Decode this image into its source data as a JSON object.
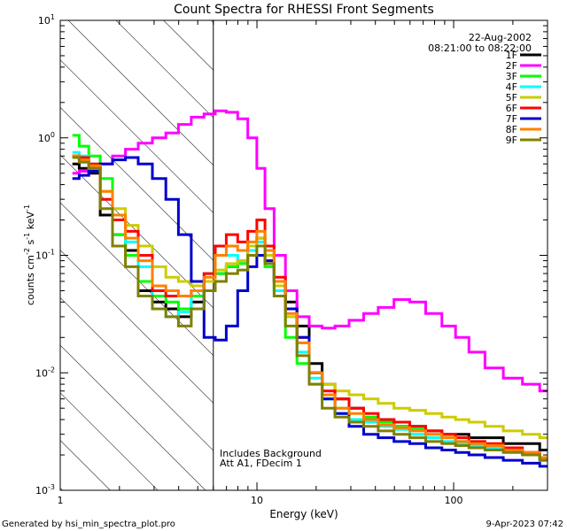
{
  "chart_data": {
    "type": "line",
    "title": "Count Spectra for RHESSI Front Segments",
    "xlabel": "Energy (keV)",
    "ylabel_parts": {
      "pre": "counts cm",
      "exp1": "-2",
      "mid": " s",
      "exp2": "-1",
      "unit": " keV",
      "exp3": "-1"
    },
    "x_scale": "log",
    "y_scale": "log",
    "xlim": [
      1,
      300
    ],
    "ylim": [
      0.001,
      10
    ],
    "x_ticks": [
      {
        "value": 1,
        "label": "1"
      },
      {
        "value": 10,
        "label": "10"
      },
      {
        "value": 100,
        "label": "100"
      }
    ],
    "y_ticks": [
      {
        "value": 0.001,
        "base": "10",
        "exp": "-3"
      },
      {
        "value": 0.01,
        "base": "10",
        "exp": "-2"
      },
      {
        "value": 0.1,
        "base": "10",
        "exp": "-1"
      },
      {
        "value": 1,
        "base": "10",
        "exp": "0"
      },
      {
        "value": 10,
        "base": "10",
        "exp": "1"
      }
    ],
    "date": "22-Aug-2002",
    "time_range": "08:21:00 to 08:22:00",
    "hatched_region": {
      "from": 1,
      "to": 6
    },
    "annotations": [
      "Includes Background",
      "Att A1, FDecim 1"
    ],
    "series": [
      {
        "name": "1F",
        "color": "#000000",
        "x": [
          1.2,
          1.3,
          1.5,
          1.7,
          2.0,
          2.3,
          2.7,
          3.2,
          3.7,
          4.3,
          5.0,
          5.8,
          6.5,
          7.5,
          8.5,
          9.5,
          10.5,
          11.5,
          13,
          15,
          17,
          20,
          23,
          27,
          32,
          38,
          45,
          55,
          65,
          80,
          95,
          110,
          130,
          160,
          200,
          250,
          300
        ],
        "y": [
          0.6,
          0.55,
          0.5,
          0.22,
          0.15,
          0.11,
          0.05,
          0.04,
          0.035,
          0.03,
          0.04,
          0.06,
          0.07,
          0.08,
          0.09,
          0.12,
          0.14,
          0.1,
          0.06,
          0.04,
          0.025,
          0.012,
          0.008,
          0.006,
          0.005,
          0.004,
          0.004,
          0.0035,
          0.0035,
          0.0032,
          0.003,
          0.003,
          0.0028,
          0.0028,
          0.0025,
          0.0025,
          0.0022
        ]
      },
      {
        "name": "2F",
        "color": "#ff00ff",
        "x": [
          1.2,
          1.3,
          1.5,
          1.7,
          2.0,
          2.3,
          2.7,
          3.2,
          3.7,
          4.3,
          5.0,
          5.8,
          6.5,
          7.5,
          8.5,
          9.5,
          10.5,
          11.5,
          13,
          15,
          17,
          20,
          23,
          27,
          32,
          38,
          45,
          55,
          65,
          80,
          95,
          110,
          130,
          160,
          200,
          250,
          300
        ],
        "y": [
          0.5,
          0.52,
          0.55,
          0.6,
          0.7,
          0.8,
          0.9,
          1.0,
          1.1,
          1.3,
          1.5,
          1.6,
          1.7,
          1.65,
          1.45,
          1.0,
          0.55,
          0.25,
          0.1,
          0.05,
          0.03,
          0.025,
          0.024,
          0.025,
          0.028,
          0.032,
          0.036,
          0.042,
          0.04,
          0.032,
          0.025,
          0.02,
          0.015,
          0.011,
          0.009,
          0.008,
          0.007
        ]
      },
      {
        "name": "3F",
        "color": "#00ff00",
        "x": [
          1.2,
          1.3,
          1.5,
          1.7,
          2.0,
          2.3,
          2.7,
          3.2,
          3.7,
          4.3,
          5.0,
          5.8,
          6.5,
          7.5,
          8.5,
          9.5,
          10.5,
          11.5,
          13,
          15,
          17,
          20,
          23,
          27,
          32,
          38,
          45,
          55,
          65,
          80,
          95,
          110,
          130,
          160,
          200,
          250,
          300
        ],
        "y": [
          1.05,
          0.85,
          0.7,
          0.45,
          0.15,
          0.1,
          0.06,
          0.045,
          0.04,
          0.035,
          0.045,
          0.06,
          0.07,
          0.08,
          0.085,
          0.1,
          0.12,
          0.08,
          0.045,
          0.02,
          0.012,
          0.008,
          0.006,
          0.005,
          0.004,
          0.0042,
          0.0038,
          0.0035,
          0.0033,
          0.003,
          0.0028,
          0.0026,
          0.0025,
          0.0024,
          0.0022,
          0.002,
          0.0018
        ]
      },
      {
        "name": "4F",
        "color": "#00ffff",
        "x": [
          1.2,
          1.3,
          1.5,
          1.7,
          2.0,
          2.3,
          2.7,
          3.2,
          3.7,
          4.3,
          5.0,
          5.8,
          6.5,
          7.5,
          8.5,
          9.5,
          10.5,
          11.5,
          13,
          15,
          17,
          20,
          23,
          27,
          32,
          38,
          45,
          55,
          65,
          80,
          95,
          110,
          130,
          160,
          200,
          250,
          300
        ],
        "y": [
          0.75,
          0.7,
          0.6,
          0.3,
          0.2,
          0.13,
          0.08,
          0.035,
          0.03,
          0.033,
          0.05,
          0.07,
          0.1,
          0.1,
          0.09,
          0.11,
          0.13,
          0.09,
          0.05,
          0.03,
          0.015,
          0.009,
          0.006,
          0.0045,
          0.004,
          0.0038,
          0.0035,
          0.0033,
          0.003,
          0.0028,
          0.0026,
          0.0025,
          0.0024,
          0.0023,
          0.0022,
          0.002,
          0.0018
        ]
      },
      {
        "name": "5F",
        "color": "#cccc00",
        "x": [
          1.2,
          1.3,
          1.5,
          1.7,
          2.0,
          2.3,
          2.7,
          3.2,
          3.7,
          4.3,
          5.0,
          5.8,
          6.5,
          7.5,
          8.5,
          9.5,
          10.5,
          11.5,
          13,
          15,
          17,
          20,
          23,
          27,
          32,
          38,
          45,
          55,
          65,
          80,
          95,
          110,
          130,
          160,
          200,
          250,
          300
        ],
        "y": [
          0.7,
          0.65,
          0.55,
          0.35,
          0.25,
          0.18,
          0.12,
          0.08,
          0.065,
          0.06,
          0.055,
          0.06,
          0.075,
          0.085,
          0.09,
          0.12,
          0.14,
          0.1,
          0.055,
          0.03,
          0.018,
          0.01,
          0.008,
          0.007,
          0.0065,
          0.006,
          0.0055,
          0.005,
          0.0048,
          0.0045,
          0.0042,
          0.004,
          0.0038,
          0.0035,
          0.0032,
          0.003,
          0.0028
        ]
      },
      {
        "name": "6F",
        "color": "#ff0000",
        "x": [
          1.2,
          1.3,
          1.5,
          1.7,
          2.0,
          2.3,
          2.7,
          3.2,
          3.7,
          4.3,
          5.0,
          5.8,
          6.5,
          7.5,
          8.5,
          9.5,
          10.5,
          11.5,
          13,
          15,
          17,
          20,
          23,
          27,
          32,
          38,
          45,
          55,
          65,
          80,
          95,
          110,
          130,
          160,
          200,
          250,
          300
        ],
        "y": [
          0.7,
          0.68,
          0.6,
          0.3,
          0.2,
          0.16,
          0.1,
          0.05,
          0.045,
          0.045,
          0.05,
          0.07,
          0.12,
          0.15,
          0.13,
          0.16,
          0.2,
          0.12,
          0.065,
          0.035,
          0.02,
          0.01,
          0.007,
          0.006,
          0.005,
          0.0045,
          0.004,
          0.0038,
          0.0035,
          0.0032,
          0.003,
          0.0028,
          0.0026,
          0.0025,
          0.0023,
          0.0021,
          0.0019
        ]
      },
      {
        "name": "7F",
        "color": "#0000cc",
        "x": [
          1.2,
          1.3,
          1.5,
          1.7,
          2.0,
          2.3,
          2.7,
          3.2,
          3.7,
          4.3,
          5.0,
          5.8,
          6.5,
          7.5,
          8.5,
          9.5,
          10.5,
          11.5,
          13,
          15,
          17,
          20,
          23,
          27,
          32,
          38,
          45,
          55,
          65,
          80,
          95,
          110,
          130,
          160,
          200,
          250,
          300
        ],
        "y": [
          0.45,
          0.48,
          0.52,
          0.6,
          0.65,
          0.68,
          0.6,
          0.45,
          0.3,
          0.15,
          0.06,
          0.02,
          0.019,
          0.025,
          0.05,
          0.08,
          0.1,
          0.09,
          0.06,
          0.035,
          0.02,
          0.01,
          0.006,
          0.0045,
          0.0035,
          0.003,
          0.0028,
          0.0026,
          0.0025,
          0.0023,
          0.0022,
          0.0021,
          0.002,
          0.0019,
          0.0018,
          0.0017,
          0.0016
        ]
      },
      {
        "name": "8F",
        "color": "#ff8000",
        "x": [
          1.2,
          1.3,
          1.5,
          1.7,
          2.0,
          2.3,
          2.7,
          3.2,
          3.7,
          4.3,
          5.0,
          5.8,
          6.5,
          7.5,
          8.5,
          9.5,
          10.5,
          11.5,
          13,
          15,
          17,
          20,
          23,
          27,
          32,
          38,
          45,
          55,
          65,
          80,
          95,
          110,
          130,
          160,
          200,
          250,
          300
        ],
        "y": [
          0.7,
          0.65,
          0.58,
          0.35,
          0.22,
          0.14,
          0.09,
          0.055,
          0.05,
          0.045,
          0.05,
          0.065,
          0.1,
          0.12,
          0.11,
          0.13,
          0.16,
          0.11,
          0.06,
          0.032,
          0.018,
          0.01,
          0.0065,
          0.005,
          0.0045,
          0.004,
          0.0036,
          0.0034,
          0.0032,
          0.003,
          0.0028,
          0.0026,
          0.0025,
          0.0024,
          0.0022,
          0.0021,
          0.0019
        ]
      },
      {
        "name": "9F",
        "color": "#808000",
        "x": [
          1.2,
          1.3,
          1.5,
          1.7,
          2.0,
          2.3,
          2.7,
          3.2,
          3.7,
          4.3,
          5.0,
          5.8,
          6.5,
          7.5,
          8.5,
          9.5,
          10.5,
          11.5,
          13,
          15,
          17,
          20,
          23,
          27,
          32,
          38,
          45,
          55,
          65,
          80,
          95,
          110,
          130,
          160,
          200,
          250,
          300
        ],
        "y": [
          0.68,
          0.62,
          0.55,
          0.25,
          0.12,
          0.08,
          0.045,
          0.035,
          0.03,
          0.025,
          0.035,
          0.05,
          0.06,
          0.07,
          0.075,
          0.1,
          0.12,
          0.085,
          0.045,
          0.025,
          0.014,
          0.008,
          0.005,
          0.0042,
          0.0038,
          0.0035,
          0.0032,
          0.003,
          0.0028,
          0.0026,
          0.0025,
          0.0024,
          0.0023,
          0.0022,
          0.0021,
          0.002,
          0.0018
        ]
      }
    ]
  },
  "footer": {
    "generated_by": "Generated by hsi_min_spectra_plot.pro",
    "timestamp": "9-Apr-2023 07:42"
  }
}
